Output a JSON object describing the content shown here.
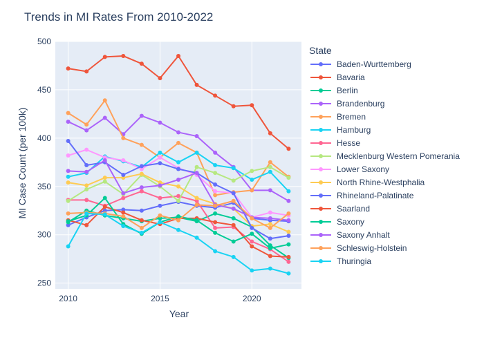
{
  "chart_data": {
    "type": "line",
    "title": "Trends in MI Rates From 2010-2022",
    "xlabel": "Year",
    "ylabel": "MI Case Count (per 100k)",
    "xlim": [
      2009.3,
      2022.7
    ],
    "ylim": [
      244,
      500
    ],
    "x_ticks": [
      2010,
      2015,
      2020
    ],
    "y_ticks": [
      250,
      300,
      350,
      400,
      450,
      500
    ],
    "grid": true,
    "legend_title": "State",
    "legend_position": "right",
    "x": [
      2010,
      2011,
      2012,
      2013,
      2014,
      2015,
      2016,
      2017,
      2018,
      2019,
      2020,
      2021,
      2022
    ],
    "series": [
      {
        "name": "Baden-Wurttemberg",
        "color": "#636efa",
        "values": [
          310,
          318,
          325,
          326,
          325,
          330,
          334,
          330,
          328,
          333,
          317,
          315,
          314
        ]
      },
      {
        "name": "Bavaria",
        "color": "#EF553B",
        "values": [
          472,
          469,
          484,
          485,
          477,
          462,
          485,
          455,
          444,
          433,
          434,
          405,
          389
        ]
      },
      {
        "name": "Berlin",
        "color": "#00cc96",
        "values": [
          313,
          325,
          320,
          317,
          314,
          317,
          318,
          314,
          322,
          317,
          308,
          289,
          276
        ]
      },
      {
        "name": "Brandenburg",
        "color": "#ab63fa",
        "values": [
          417,
          408,
          421,
          404,
          423,
          416,
          406,
          402,
          385,
          370,
          346,
          346,
          335
        ]
      },
      {
        "name": "Bremen",
        "color": "#FFA15A",
        "values": [
          426,
          414,
          439,
          400,
          393,
          380,
          395,
          385,
          341,
          344,
          346,
          375,
          360
        ]
      },
      {
        "name": "Hamburg",
        "color": "#19d3f3",
        "values": [
          360,
          364,
          381,
          376,
          370,
          385,
          375,
          385,
          372,
          369,
          357,
          365,
          345
        ]
      },
      {
        "name": "Hesse",
        "color": "#FF6692",
        "values": [
          336,
          336,
          330,
          338,
          345,
          338,
          340,
          335,
          307,
          308,
          293,
          285,
          272
        ]
      },
      {
        "name": "Mecklenburg Western Pomerania",
        "color": "#B6E880",
        "values": [
          335,
          347,
          355,
          342,
          362,
          350,
          335,
          370,
          364,
          356,
          366,
          370,
          359
        ]
      },
      {
        "name": "Lower Saxony",
        "color": "#FF97FF",
        "values": [
          382,
          388,
          380,
          377,
          368,
          380,
          369,
          362,
          345,
          343,
          318,
          323,
          320
        ]
      },
      {
        "name": "North Rhine-Westphalia",
        "color": "#FECB52",
        "values": [
          354,
          351,
          359,
          359,
          363,
          354,
          350,
          338,
          332,
          327,
          309,
          311,
          303
        ]
      },
      {
        "name": "Rhineland-Palatinate",
        "color": "#636efa",
        "values": [
          397,
          372,
          375,
          362,
          371,
          374,
          368,
          364,
          352,
          343,
          307,
          296,
          299
        ]
      },
      {
        "name": "Saarland",
        "color": "#EF553B",
        "values": [
          315,
          310,
          329,
          323,
          315,
          311,
          317,
          317,
          313,
          310,
          288,
          278,
          277
        ]
      },
      {
        "name": "Saxony",
        "color": "#00cc96",
        "values": [
          314,
          320,
          338,
          311,
          301,
          313,
          319,
          315,
          302,
          293,
          301,
          286,
          290
        ]
      },
      {
        "name": "Saxony Anhalt",
        "color": "#ab63fa",
        "values": [
          366,
          365,
          377,
          343,
          349,
          351,
          357,
          364,
          331,
          327,
          318,
          317,
          315
        ]
      },
      {
        "name": "Schleswig-Holstein",
        "color": "#FFA15A",
        "values": [
          322,
          323,
          322,
          319,
          307,
          320,
          315,
          331,
          330,
          335,
          317,
          307,
          322
        ]
      },
      {
        "name": "Thuringia",
        "color": "#19d3f3",
        "values": [
          288,
          322,
          321,
          309,
          302,
          313,
          305,
          297,
          283,
          277,
          263,
          265,
          260
        ]
      }
    ]
  }
}
